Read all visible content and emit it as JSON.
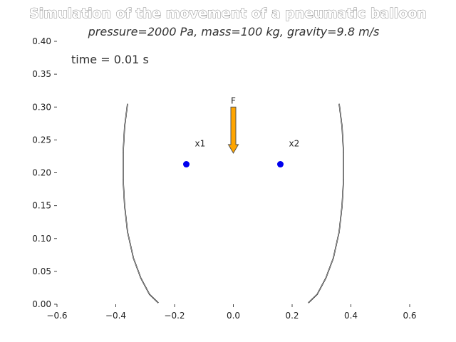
{
  "chart_data": {
    "type": "scatter",
    "title": "Simulation of the movement of a pneumatic balloon",
    "subtitle": "pressure=2000 Pa, mass=100 kg, gravity=9.8 m/s",
    "time_label": "time = 0.01 s",
    "xlim": [
      -0.6,
      0.6
    ],
    "ylim": [
      0.0,
      0.4
    ],
    "x_ticks": [
      -0.6,
      -0.4,
      -0.2,
      0.0,
      0.2,
      0.4,
      0.6
    ],
    "x_tick_labels": [
      "−0.6",
      "−0.4",
      "−0.2",
      "0.0",
      "0.2",
      "0.4",
      "0.6"
    ],
    "y_ticks": [
      0.0,
      0.05,
      0.1,
      0.15,
      0.2,
      0.25,
      0.3,
      0.35,
      0.4
    ],
    "y_tick_labels": [
      "0.00",
      "0.05",
      "0.10",
      "0.15",
      "0.20",
      "0.25",
      "0.30",
      "0.35",
      "0.40"
    ],
    "grid": false,
    "points": [
      {
        "label": "x1",
        "x": -0.16,
        "y": 0.213,
        "color": "#0000ee"
      },
      {
        "label": "x2",
        "x": 0.16,
        "y": 0.213,
        "color": "#0000ee"
      }
    ],
    "force_arrow": {
      "label": "F",
      "x": 0.0,
      "y_start": 0.3,
      "y_end": 0.23,
      "color": "#ffa500",
      "edge_color": "#555555"
    },
    "balloon_curves": [
      {
        "side": "left",
        "points": [
          [
            -0.36,
            0.305
          ],
          [
            -0.37,
            0.27
          ],
          [
            -0.375,
            0.23
          ],
          [
            -0.375,
            0.19
          ],
          [
            -0.37,
            0.15
          ],
          [
            -0.36,
            0.11
          ],
          [
            -0.34,
            0.07
          ],
          [
            -0.315,
            0.04
          ],
          [
            -0.285,
            0.015
          ],
          [
            -0.255,
            0.002
          ]
        ]
      },
      {
        "side": "right",
        "points": [
          [
            0.36,
            0.305
          ],
          [
            0.37,
            0.27
          ],
          [
            0.375,
            0.23
          ],
          [
            0.375,
            0.19
          ],
          [
            0.37,
            0.15
          ],
          [
            0.36,
            0.11
          ],
          [
            0.34,
            0.07
          ],
          [
            0.315,
            0.04
          ],
          [
            0.285,
            0.015
          ],
          [
            0.255,
            0.002
          ]
        ]
      }
    ]
  }
}
